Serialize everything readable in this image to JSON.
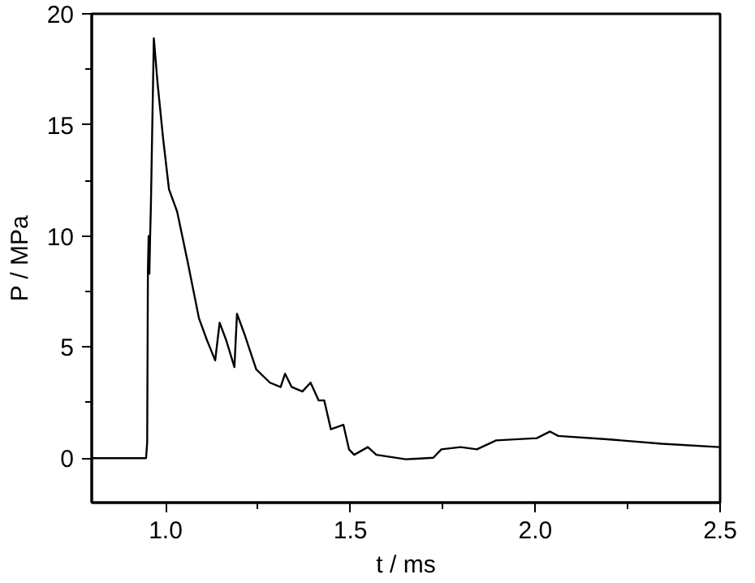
{
  "chart_data": {
    "type": "line",
    "xlabel": "t / ms",
    "ylabel": "P / MPa",
    "xlim": [
      0.8,
      2.5
    ],
    "ylim": [
      -2,
      20
    ],
    "xticks": [
      {
        "value": 1.0,
        "label": "1.0"
      },
      {
        "value": 1.5,
        "label": "1.5"
      },
      {
        "value": 2.0,
        "label": "2.0"
      },
      {
        "value": 2.5,
        "label": "2.5"
      }
    ],
    "yticks": [
      0,
      5,
      10,
      15,
      20
    ],
    "grid": false,
    "marker": "none",
    "line_style": "solid",
    "series": [
      {
        "color": "#000000",
        "x": [
          0.8,
          0.947,
          0.95,
          0.952,
          0.954,
          0.956,
          0.958,
          0.96,
          0.968,
          0.978,
          0.993,
          1.009,
          1.031,
          1.06,
          1.09,
          1.112,
          1.134,
          1.146,
          1.164,
          1.186,
          1.193,
          1.215,
          1.245,
          1.282,
          1.311,
          1.323,
          1.341,
          1.37,
          1.392,
          1.414,
          1.429,
          1.447,
          1.481,
          1.496,
          1.51,
          1.547,
          1.57,
          1.65,
          1.724,
          1.746,
          1.798,
          1.842,
          1.894,
          2.004,
          2.04,
          2.062,
          2.195,
          2.342,
          2.498
        ],
        "values": [
          0,
          0,
          0.7,
          8.5,
          10.0,
          8.3,
          10.0,
          11.3,
          18.9,
          16.9,
          14.4,
          12.1,
          11.1,
          8.8,
          6.3,
          5.3,
          4.4,
          6.1,
          5.3,
          4.1,
          6.5,
          5.5,
          4.0,
          3.4,
          3.2,
          3.8,
          3.2,
          3.0,
          3.4,
          2.6,
          2.6,
          1.3,
          1.5,
          0.4,
          0.15,
          0.5,
          0.15,
          -0.05,
          0.02,
          0.4,
          0.5,
          0.4,
          0.8,
          0.9,
          1.2,
          1.0,
          0.85,
          0.65,
          0.5
        ]
      }
    ]
  }
}
